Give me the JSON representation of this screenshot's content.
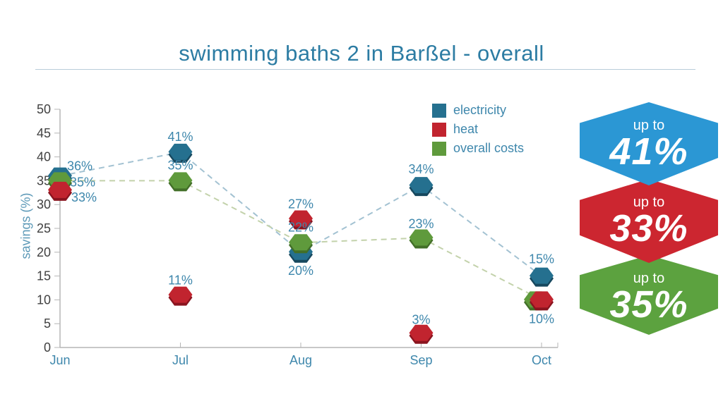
{
  "title": "swimming baths 2 in Barßel - overall",
  "chart_data": {
    "type": "line",
    "x": [
      "Jun",
      "Jul",
      "Aug",
      "Sep",
      "Oct"
    ],
    "ylabel": "savings (%)",
    "ylim": [
      0,
      50
    ],
    "ytick_step": 5,
    "grid": false,
    "legend_position": "top-right-inside",
    "line_style": "dashed",
    "marker": "hexagon",
    "series": [
      {
        "name": "electricity",
        "color": "#25708f",
        "dark_color": "#17485e",
        "line_color": "#a3c2d2",
        "values": [
          36,
          41,
          20,
          34,
          15
        ],
        "labels": [
          "36%",
          "41%",
          "20%",
          "34%",
          "15%"
        ]
      },
      {
        "name": "heat",
        "color": "#c1242f",
        "dark_color": "#8a141f",
        "line_color": "#edा6ab",
        "values": [
          33,
          11,
          27,
          3,
          10
        ],
        "labels": [
          "33%",
          "11%",
          "27%",
          "3%",
          "10%"
        ]
      },
      {
        "name": "overall costs",
        "color": "#5f9a3c",
        "dark_color": "#426f28",
        "line_color": "#c3d2ab",
        "values": [
          35,
          35,
          22,
          23,
          10
        ],
        "labels": [
          "35%",
          "35%",
          "22%",
          "23%",
          ""
        ]
      }
    ]
  },
  "badges": [
    {
      "prefix": "up to",
      "value": "41%",
      "color": "#2b97d4"
    },
    {
      "prefix": "up to",
      "value": "33%",
      "color": "#cc2630"
    },
    {
      "prefix": "up to",
      "value": "35%",
      "color": "#5ca23f"
    }
  ]
}
